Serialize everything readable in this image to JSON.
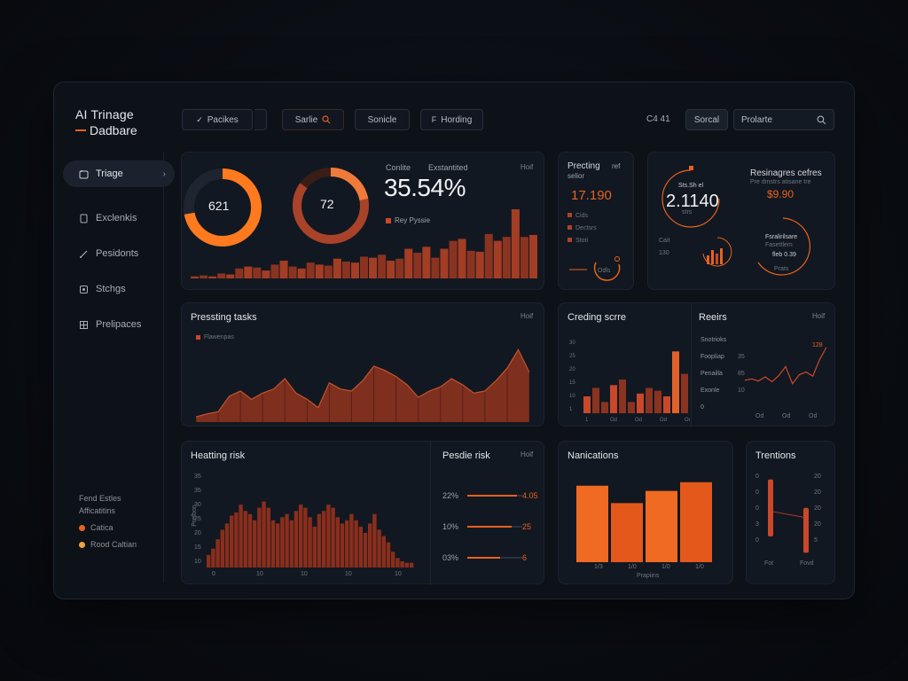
{
  "app": {
    "title_line1": "AI Trinage",
    "title_line2": "Dadbare"
  },
  "toolbar": {
    "btn1": "Pacikes",
    "btn2": "Sarlie",
    "btn3": "Sonicle",
    "btn4": "Hording",
    "status": "C4 41",
    "btn5": "Sorcal",
    "search_placeholder": "Prolarte"
  },
  "sidebar": {
    "items": [
      {
        "label": "Triage",
        "icon": "triage-icon"
      },
      {
        "label": "Exclenkis",
        "icon": "document-icon"
      },
      {
        "label": "Pesidonts",
        "icon": "edit-icon"
      },
      {
        "label": "Stchgs",
        "icon": "settings-icon"
      },
      {
        "label": "Prelipaces",
        "icon": "grid-icon"
      }
    ],
    "footer_title": "Fend Estles",
    "footer_sub": "Afficatitins",
    "footer_items": [
      {
        "label": "Catica",
        "color": "#e8621d"
      },
      {
        "label": "Rood Caltian",
        "color": "#f2a33a"
      }
    ]
  },
  "overview": {
    "donut1_value": "621",
    "donut1_fraction": 0.72,
    "donut2_value": "72",
    "donut2_fraction": 0.85,
    "header_a": "Conlite",
    "header_b": "Exstantited",
    "meta": "Hoif",
    "big_percent": "35.54%",
    "legend": "Rey Pyssie",
    "chart_data": {
      "type": "bar",
      "values": [
        2,
        3,
        2,
        5,
        4,
        10,
        12,
        11,
        8,
        14,
        18,
        12,
        10,
        16,
        14,
        13,
        20,
        17,
        16,
        22,
        21,
        24,
        18,
        20,
        30,
        26,
        32,
        21,
        30,
        38,
        40,
        28,
        27,
        45,
        38,
        42,
        70,
        42,
        44
      ]
    }
  },
  "predicting": {
    "title": "Precting",
    "title_b": "ref",
    "sub": "selior",
    "value": "17.190",
    "rows": [
      "Cids",
      "Dectsrs",
      "Stoti"
    ],
    "small": "Odls"
  },
  "resinagees": {
    "title": "Resinagres cefres",
    "sub": "Pre dmstrs atisane tre",
    "value_a": "2.1140",
    "value_a_top": "Sts.Sh el",
    "value_a_bot": "strs",
    "value_b": "$9.90",
    "label_c": "Cait",
    "label_d": "130",
    "mini_top": "Fsralirilsare",
    "mini_mid": "Fasettlem",
    "mini_bot": "fleb 0.39",
    "mini_label": "Prats"
  },
  "pressing": {
    "title": "Pressting tasks",
    "meta": "Hoif",
    "legend": "Flawenpas",
    "chart_data": {
      "type": "area",
      "values": [
        5,
        8,
        10,
        25,
        30,
        22,
        28,
        32,
        42,
        28,
        22,
        14,
        38,
        32,
        30,
        40,
        54,
        50,
        44,
        36,
        24,
        30,
        34,
        42,
        36,
        28,
        30,
        40,
        52,
        70,
        48
      ]
    }
  },
  "creding": {
    "title": "Creding scrre",
    "y_ticks": [
      "30",
      "25",
      "20",
      "15",
      "10",
      "1"
    ],
    "x_ticks": [
      "1",
      "Od",
      "Od",
      "Od",
      "Od"
    ],
    "chart_data": {
      "type": "bar",
      "values": [
        6,
        9,
        4,
        10,
        12,
        4,
        7,
        9,
        8,
        6,
        22,
        14,
        22
      ]
    }
  },
  "reeirs": {
    "title": "Reeirs",
    "meta": "Hoif",
    "rows": [
      "Snotrioks",
      "Foopliap",
      "Penailla",
      "Exonle",
      "0"
    ],
    "vals": [
      "",
      "35",
      "85",
      "10",
      ""
    ],
    "peak": "128",
    "x_ticks": [
      "Od",
      "Od",
      "Od"
    ],
    "chart_data": {
      "type": "line",
      "values": [
        40,
        42,
        39,
        45,
        38,
        47,
        60,
        35,
        48,
        52,
        46,
        70,
        88
      ]
    }
  },
  "heating": {
    "title": "Heatting risk",
    "y_ticks": [
      "35",
      "35",
      "30",
      "25",
      "20",
      "15",
      "10",
      "0"
    ],
    "y_label": "Prefbon",
    "x_ticks": [
      "0",
      "10",
      "10",
      "10",
      "10",
      "100"
    ],
    "chart_data": {
      "type": "bar",
      "values": [
        8,
        12,
        18,
        24,
        28,
        33,
        35,
        40,
        36,
        34,
        30,
        38,
        42,
        38,
        30,
        28,
        32,
        34,
        30,
        36,
        40,
        38,
        32,
        26,
        34,
        36,
        40,
        38,
        32,
        28,
        30,
        34,
        30,
        26,
        22,
        28,
        34,
        24,
        20,
        16,
        10,
        6,
        4,
        3,
        3
      ]
    }
  },
  "pesdie": {
    "title": "Pesdie risk",
    "meta": "Hoif",
    "rows": [
      {
        "label": "22%",
        "value": "4.05",
        "fraction": 0.9
      },
      {
        "label": "10%",
        "value": "25",
        "fraction": 0.8
      },
      {
        "label": "03%",
        "value": "6",
        "fraction": 0.6
      }
    ]
  },
  "nanications": {
    "title": "Nanications",
    "x_ticks": [
      "1/3",
      "1/0",
      "1/0",
      "1/0"
    ],
    "x_label": "Prapiins",
    "chart_data": {
      "type": "bar",
      "values": [
        88,
        68,
        82,
        92
      ]
    }
  },
  "trentions": {
    "title": "Trentions",
    "y_left": [
      "0",
      "0",
      "0",
      "3",
      "0"
    ],
    "y_right": [
      "20",
      "20",
      "20",
      "20",
      "5"
    ],
    "x_ticks": [
      "Fot",
      "Fovd"
    ],
    "chart_data": {
      "type": "range",
      "bars": [
        {
          "low": 0.25,
          "high": 0.95
        },
        {
          "low": 0.05,
          "high": 0.6
        }
      ]
    }
  },
  "colors": {
    "accent": "#e8621d",
    "accent_bright": "#ff7a1f",
    "bar_dark": "#8a3321",
    "bar_mid": "#a8432a"
  }
}
